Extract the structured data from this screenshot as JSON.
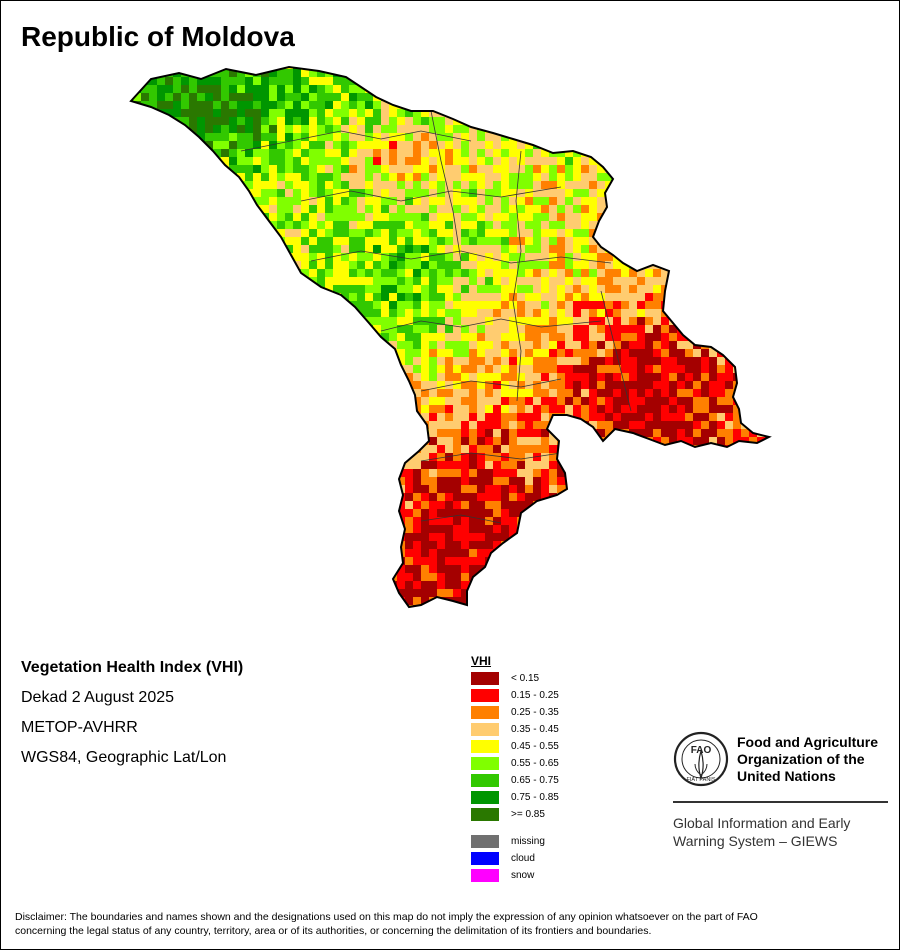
{
  "map": {
    "title": "Republic of Moldova",
    "colors": {
      "outline": "#000000",
      "district_lines": "#333333"
    }
  },
  "info": {
    "index_name": "Vegetation Health Index (VHI)",
    "period": "Dekad 2 August 2025",
    "sensor": "METOP-AVHRR",
    "projection": "WGS84, Geographic Lat/Lon"
  },
  "legend": {
    "heading": "VHI",
    "classes": [
      {
        "label": "< 0.15",
        "color": "#a40000"
      },
      {
        "label": "0.15 - 0.25",
        "color": "#ff0000"
      },
      {
        "label": "0.25 - 0.35",
        "color": "#ff8000"
      },
      {
        "label": "0.35 - 0.45",
        "color": "#ffcc70"
      },
      {
        "label": "0.45 - 0.55",
        "color": "#ffff00"
      },
      {
        "label": "0.55 - 0.65",
        "color": "#80ff00"
      },
      {
        "label": "0.65 - 0.75",
        "color": "#32c800"
      },
      {
        "label": "0.75 - 0.85",
        "color": "#009600"
      },
      {
        "label": ">= 0.85",
        "color": "#2a7800"
      }
    ],
    "extras": [
      {
        "label": "missing",
        "color": "#707070"
      },
      {
        "label": "cloud",
        "color": "#0000ff"
      },
      {
        "label": "snow",
        "color": "#ff00ff"
      }
    ]
  },
  "logo": {
    "emblem_text": "FAO",
    "motto": "FIAT PANIS",
    "org_line1": "Food and Agriculture",
    "org_line2": "Organization of the",
    "org_line3": "United Nations",
    "program_line1": "Global Information and Early",
    "program_line2": "Warning System – GIEWS"
  },
  "disclaimer": {
    "line1": "Disclaimer: The boundaries and names shown and the designations used on this map do not imply the expression of any opinion whatsoever on the part of FAO",
    "line2": "concerning the legal status of any country, territory, area or of its authorities, or concerning the delimitation of its frontiers and boundaries."
  }
}
